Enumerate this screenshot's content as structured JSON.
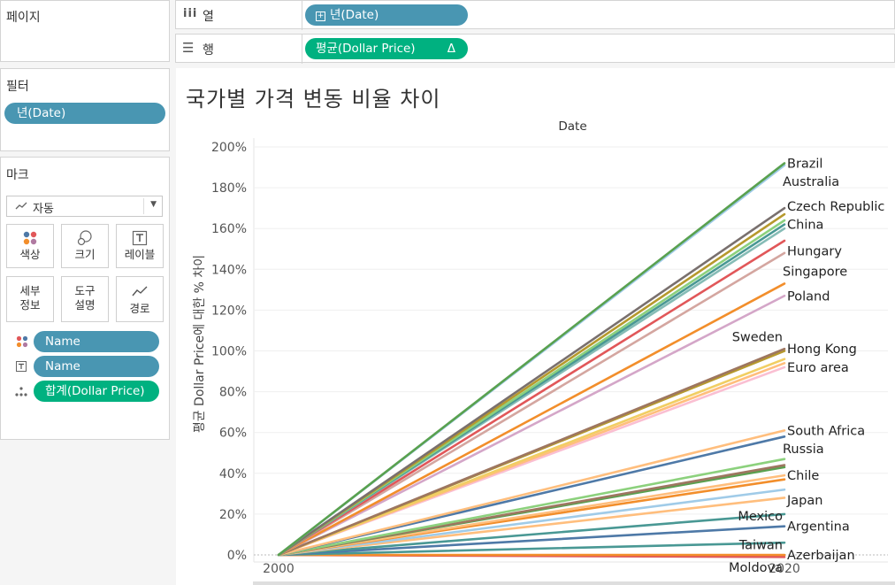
{
  "shelf": {
    "pages_label": "페이지",
    "columns_label": "열",
    "columns_pill": "년(Date)",
    "rows_label": "행",
    "rows_pill": "평균(Dollar Price)",
    "rows_pill_delta": "Δ"
  },
  "filters": {
    "title": "필터",
    "pill": "년(Date)"
  },
  "marks": {
    "title": "마크",
    "type_value": "자동",
    "cards": {
      "color": "색상",
      "size": "크기",
      "label": "레이블",
      "detail_1": "세부",
      "detail_2": "정보",
      "tooltip_1": "도구",
      "tooltip_2": "설명",
      "path": "경로"
    },
    "pills": {
      "color_name": "Name",
      "label_name": "Name",
      "detail_sum": "합계(Dollar Price)"
    }
  },
  "chart_data": {
    "type": "line",
    "title": "국가별 가격 변동 비율 차이",
    "header": "Date",
    "ylabel": "평균 Dollar Price에 대한 % 차이",
    "xlabel": "",
    "x_ticks": [
      "2000",
      "2020"
    ],
    "y_ticks": [
      "0%",
      "20%",
      "40%",
      "60%",
      "80%",
      "100%",
      "120%",
      "140%",
      "160%",
      "180%",
      "200%"
    ],
    "ylim": [
      0,
      200
    ],
    "x": [
      2000,
      2020
    ],
    "grid": true,
    "series": [
      {
        "name": "Brazil",
        "values": [
          0,
          192
        ],
        "color": "#59a14f"
      },
      {
        "name": "Australia",
        "values": [
          0,
          191
        ],
        "color": "#a0cbe8"
      },
      {
        "name": "Czech Republic",
        "values": [
          0,
          170
        ],
        "color": "#79706e"
      },
      {
        "name": "",
        "values": [
          0,
          167
        ],
        "color": "#b6992d"
      },
      {
        "name": "",
        "values": [
          0,
          164
        ],
        "color": "#8cd17d"
      },
      {
        "name": "China",
        "values": [
          0,
          162
        ],
        "color": "#499894"
      },
      {
        "name": "",
        "values": [
          0,
          160
        ],
        "color": "#86bcb6"
      },
      {
        "name": "Hungary",
        "values": [
          0,
          154
        ],
        "color": "#e15759"
      },
      {
        "name": "Singapore",
        "values": [
          0,
          148
        ],
        "color": "#d4a6a0"
      },
      {
        "name": "Poland",
        "values": [
          0,
          133
        ],
        "color": "#f28e2b"
      },
      {
        "name": "",
        "values": [
          0,
          127
        ],
        "color": "#d4a6c8"
      },
      {
        "name": "Sweden",
        "values": [
          0,
          101
        ],
        "color": "#9d7660"
      },
      {
        "name": "Hong Kong",
        "values": [
          0,
          100
        ],
        "color": "#b6992d"
      },
      {
        "name": "",
        "values": [
          0,
          96
        ],
        "color": "#f1ce63"
      },
      {
        "name": "Euro area",
        "values": [
          0,
          94
        ],
        "color": "#ffbe7d"
      },
      {
        "name": "",
        "values": [
          0,
          92
        ],
        "color": "#fabfd2"
      },
      {
        "name": "South Africa",
        "values": [
          0,
          61
        ],
        "color": "#ffbe7d"
      },
      {
        "name": "Russia",
        "values": [
          0,
          58
        ],
        "color": "#4e79a7"
      },
      {
        "name": "",
        "values": [
          0,
          47
        ],
        "color": "#8cd17d"
      },
      {
        "name": "",
        "values": [
          0,
          44
        ],
        "color": "#9d7660"
      },
      {
        "name": "",
        "values": [
          0,
          43
        ],
        "color": "#59a14f"
      },
      {
        "name": "Chile",
        "values": [
          0,
          39
        ],
        "color": "#ffbe7d"
      },
      {
        "name": "",
        "values": [
          0,
          37
        ],
        "color": "#f28e2b"
      },
      {
        "name": "",
        "values": [
          0,
          32
        ],
        "color": "#a0cbe8"
      },
      {
        "name": "Japan",
        "values": [
          0,
          28
        ],
        "color": "#ffbe7d"
      },
      {
        "name": "Mexico",
        "values": [
          0,
          20
        ],
        "color": "#499894"
      },
      {
        "name": "Argentina",
        "values": [
          0,
          14
        ],
        "color": "#4e79a7"
      },
      {
        "name": "Taiwan",
        "values": [
          0,
          6
        ],
        "color": "#499894"
      },
      {
        "name": "Azerbaijan",
        "values": [
          0,
          0
        ],
        "color": "#f28e2b"
      },
      {
        "name": "Moldova",
        "values": [
          0,
          -1
        ],
        "color": "#e15759"
      }
    ],
    "end_labels": [
      {
        "text": "Brazil",
        "value": 192
      },
      {
        "text": "Australia",
        "value": 183
      },
      {
        "text": "Czech Republic",
        "value": 171
      },
      {
        "text": "China",
        "value": 162
      },
      {
        "text": "Hungary",
        "value": 149
      },
      {
        "text": "Singapore",
        "value": 139
      },
      {
        "text": "Poland",
        "value": 127
      },
      {
        "text": "Sweden",
        "value": 107
      },
      {
        "text": "Hong Kong",
        "value": 101
      },
      {
        "text": "Euro area",
        "value": 92
      },
      {
        "text": "South Africa",
        "value": 61
      },
      {
        "text": "Russia",
        "value": 52
      },
      {
        "text": "Chile",
        "value": 39
      },
      {
        "text": "Japan",
        "value": 27
      },
      {
        "text": "Mexico",
        "value": 19
      },
      {
        "text": "Argentina",
        "value": 14
      },
      {
        "text": "Taiwan",
        "value": 5
      },
      {
        "text": "Azerbaijan",
        "value": 0
      },
      {
        "text": "Moldova",
        "value": -6
      }
    ]
  }
}
